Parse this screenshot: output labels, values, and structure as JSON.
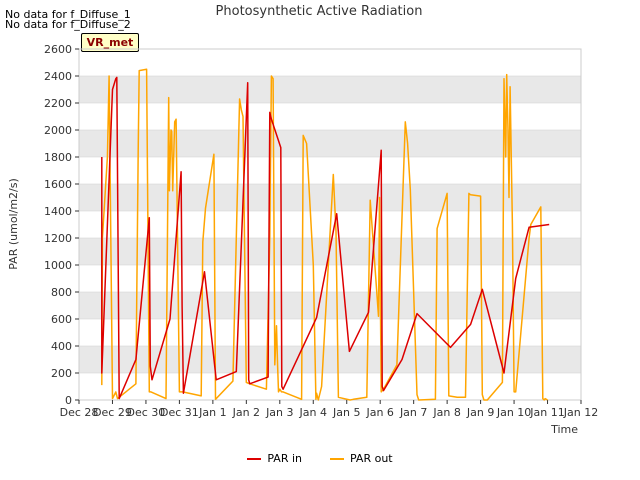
{
  "header": {
    "no_data_1": "No data for f_Diffuse_1",
    "no_data_2": "No data for f_Diffuse_2",
    "badge": "VR_met"
  },
  "colors": {
    "par_in": "#dd0000",
    "par_out": "#ffa500",
    "band": "#e8e8e8",
    "grid": "#d0d0d0"
  },
  "chart_data": {
    "type": "line",
    "title": "Photosynthetic Active Radiation",
    "xlabel": "Time",
    "ylabel": "PAR (umol/m2/s)",
    "ylim": [
      0,
      2600
    ],
    "yticks": [
      0,
      200,
      400,
      600,
      800,
      1000,
      1200,
      1400,
      1600,
      1800,
      2000,
      2200,
      2400,
      2600
    ],
    "xlim": [
      0,
      15
    ],
    "xticks": [
      {
        "x": 0,
        "label": "Dec 28"
      },
      {
        "x": 1,
        "label": "Dec 29"
      },
      {
        "x": 2,
        "label": "Dec 30"
      },
      {
        "x": 3,
        "label": "Dec 31"
      },
      {
        "x": 4,
        "label": "Jan 1"
      },
      {
        "x": 5,
        "label": "Jan 2"
      },
      {
        "x": 6,
        "label": "Jan 3"
      },
      {
        "x": 7,
        "label": "Jan 4"
      },
      {
        "x": 8,
        "label": "Jan 5"
      },
      {
        "x": 9,
        "label": "Jan 6"
      },
      {
        "x": 10,
        "label": "Jan 7"
      },
      {
        "x": 11,
        "label": "Jan 8"
      },
      {
        "x": 12,
        "label": "Jan 9"
      },
      {
        "x": 13,
        "label": "Jan 10"
      },
      {
        "x": 14,
        "label": "Jan 11"
      },
      {
        "x": 15,
        "label": "Jan 12"
      }
    ],
    "series": [
      {
        "name": "PAR in",
        "x": [
          0.68,
          0.68,
          1.0,
          1.1,
          1.13,
          1.2,
          1.7,
          2.1,
          2.13,
          2.18,
          2.72,
          3.05,
          3.08,
          3.12,
          3.75,
          4.1,
          4.7,
          5.04,
          5.07,
          5.1,
          5.65,
          5.7,
          5.75,
          6.03,
          6.06,
          6.1,
          7.1,
          7.7,
          8.08,
          8.65,
          9.03,
          9.06,
          9.1,
          9.65,
          10.1,
          11.1,
          11.7,
          12.05,
          12.7,
          13.05,
          13.45,
          14.05
        ],
        "values": [
          1800,
          200,
          2300,
          2380,
          2390,
          10,
          300,
          1350,
          250,
          150,
          600,
          1690,
          700,
          50,
          950,
          150,
          210,
          2350,
          150,
          120,
          170,
          2130,
          2080,
          1870,
          100,
          80,
          610,
          1380,
          360,
          650,
          1850,
          100,
          70,
          300,
          640,
          390,
          560,
          820,
          200,
          900,
          1280,
          1300
        ]
      },
      {
        "name": "PAR out",
        "x": [
          0.68,
          0.7,
          0.85,
          0.9,
          1.0,
          1.1,
          1.15,
          1.7,
          1.77,
          1.8,
          2.02,
          2.1,
          2.15,
          2.6,
          2.68,
          2.7,
          2.75,
          2.77,
          2.8,
          2.86,
          2.9,
          3.0,
          3.05,
          3.1,
          3.65,
          3.7,
          3.78,
          4.03,
          4.08,
          4.6,
          4.7,
          4.8,
          4.85,
          4.9,
          5.0,
          5.1,
          5.6,
          5.7,
          5.75,
          5.8,
          5.85,
          5.9,
          5.93,
          5.96,
          6.0,
          6.05,
          6.1,
          6.65,
          6.7,
          6.8,
          7.0,
          7.08,
          7.1,
          7.15,
          7.25,
          7.6,
          7.68,
          7.75,
          8.1,
          8.2,
          8.6,
          8.7,
          8.95,
          8.98,
          9.03,
          9.1,
          9.5,
          9.75,
          9.82,
          9.9,
          10.1,
          10.15,
          10.65,
          10.7,
          11.0,
          11.05,
          11.3,
          11.55,
          11.65,
          11.7,
          12.0,
          12.05,
          12.1,
          12.2,
          12.65,
          12.7,
          12.75,
          12.78,
          12.82,
          12.85,
          12.88,
          12.95,
          13.0,
          13.05,
          13.45,
          13.5,
          13.8,
          13.86,
          13.9,
          13.93,
          14.0
        ],
        "values": [
          110,
          1200,
          1800,
          2400,
          10,
          60,
          10,
          120,
          1850,
          2440,
          2450,
          60,
          60,
          10,
          2240,
          1550,
          2000,
          1990,
          1550,
          2060,
          2080,
          60,
          60,
          60,
          30,
          1170,
          1420,
          1820,
          5,
          140,
          1200,
          2230,
          2150,
          2100,
          130,
          120,
          80,
          1200,
          2400,
          2380,
          260,
          550,
          280,
          60,
          80,
          60,
          60,
          5,
          1960,
          1900,
          1000,
          5,
          50,
          0,
          100,
          1670,
          1250,
          20,
          0,
          5,
          20,
          1480,
          620,
          1500,
          60,
          80,
          260,
          2060,
          1900,
          1560,
          40,
          0,
          5,
          1270,
          1530,
          30,
          20,
          20,
          1530,
          1520,
          1510,
          40,
          0,
          0,
          130,
          2380,
          1800,
          2410,
          2000,
          1500,
          2320,
          1300,
          60,
          60,
          1200,
          1300,
          1430,
          10,
          0,
          10,
          0
        ]
      }
    ],
    "legend": [
      {
        "label": "PAR in",
        "series": 0
      },
      {
        "label": "PAR out",
        "series": 1
      }
    ],
    "legend_position": "bottom-center",
    "grid": "horizontal bands"
  }
}
